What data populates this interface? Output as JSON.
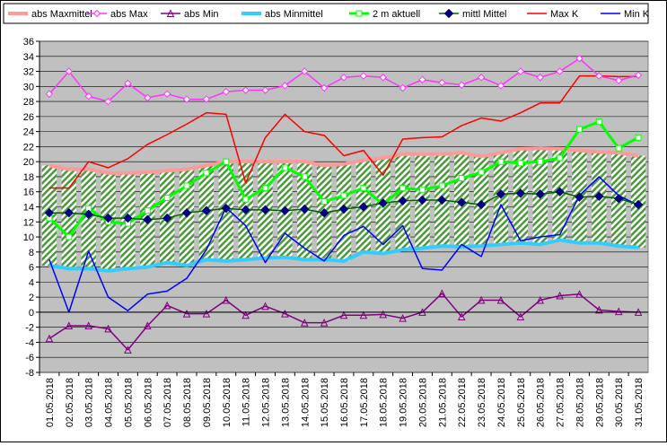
{
  "chart_data": {
    "type": "line",
    "title": "",
    "xlabel": "",
    "ylabel": "",
    "ylim": [
      -8,
      36
    ],
    "ytick_step": 2,
    "grid": true,
    "legend_position": "top",
    "plot_background": "#c0c0c0",
    "band_between": [
      "abs Minmittel",
      "abs Maxmittel"
    ],
    "band_hatch_color": "#4a9a3a",
    "categories": [
      "01.05.2018",
      "02.05.2018",
      "03.05.2018",
      "04.05.2018",
      "05.05.2018",
      "06.05.2018",
      "07.05.2018",
      "08.05.2018",
      "09.05.2018",
      "10.05.2018",
      "11.05.2018",
      "12.05.2018",
      "13.05.2018",
      "14.05.2018",
      "15.05.2018",
      "16.05.2018",
      "17.05.2018",
      "18.05.2018",
      "19.05.2018",
      "20.05.2018",
      "21.05.2018",
      "22.05.2018",
      "23.05.2018",
      "24.05.2018",
      "25.05.2018",
      "26.05.2018",
      "27.05.2018",
      "28.05.2018",
      "29.05.2018",
      "30.05.2018",
      "31.05.2018"
    ],
    "series": [
      {
        "name": "abs Maxmittel",
        "color": "#ff9999",
        "marker": "none",
        "width": 4,
        "values": [
          19.5,
          19.0,
          19.0,
          18.5,
          18.5,
          18.6,
          18.8,
          19.0,
          19.5,
          20.0,
          20.0,
          20.0,
          20.0,
          20.0,
          19.5,
          19.7,
          20.2,
          20.5,
          21.0,
          21.0,
          21.0,
          21.2,
          20.7,
          21.2,
          21.7,
          21.8,
          21.7,
          21.5,
          21.3,
          21.2,
          20.8
        ]
      },
      {
        "name": "abs Max",
        "color": "#ff33ff",
        "marker": "diamond-open",
        "values": [
          29.0,
          32.0,
          28.7,
          28.0,
          30.4,
          28.5,
          29.0,
          28.3,
          28.3,
          29.3,
          29.5,
          29.5,
          30.1,
          32.0,
          29.8,
          31.2,
          31.4,
          31.2,
          29.8,
          30.9,
          30.5,
          30.2,
          31.2,
          30.1,
          32.0,
          31.2,
          32.0,
          33.7,
          31.4,
          30.8,
          31.5
        ]
      },
      {
        "name": "abs Min",
        "color": "#800080",
        "marker": "triangle-open",
        "values": [
          -3.5,
          -1.8,
          -1.8,
          -2.2,
          -5.0,
          -1.8,
          0.9,
          -0.2,
          -0.2,
          1.6,
          -0.4,
          0.8,
          -0.2,
          -1.4,
          -1.4,
          -0.4,
          -0.4,
          -0.3,
          -0.8,
          0.0,
          2.5,
          -0.6,
          1.6,
          1.6,
          -0.6,
          1.6,
          2.2,
          2.4,
          0.3,
          0.1,
          0.0
        ]
      },
      {
        "name": "abs Minmittel",
        "color": "#33ccff",
        "marker": "none",
        "width": 4,
        "values": [
          6.2,
          5.8,
          5.8,
          5.5,
          5.8,
          6.0,
          6.6,
          6.2,
          7.0,
          6.8,
          7.0,
          7.2,
          7.3,
          7.0,
          7.0,
          6.8,
          8.0,
          7.8,
          8.3,
          8.5,
          8.8,
          8.7,
          8.8,
          9.0,
          9.2,
          9.0,
          9.6,
          9.2,
          9.2,
          8.8,
          8.6
        ]
      },
      {
        "name": "2 m aktuell",
        "color": "#00ff00",
        "marker": "square-open",
        "width": 3,
        "values": [
          12.5,
          10.0,
          13.8,
          12.0,
          11.8,
          13.5,
          15.2,
          16.8,
          18.5,
          20.0,
          15.0,
          16.5,
          19.2,
          18.0,
          14.7,
          15.5,
          16.5,
          14.3,
          16.5,
          16.3,
          16.8,
          17.8,
          18.6,
          20.0,
          19.8,
          20.0,
          20.5,
          24.3,
          25.3,
          21.8,
          23.2
        ]
      },
      {
        "name": "mittl Mittel",
        "color": "#006400",
        "marker": "diamond-navy",
        "values": [
          13.2,
          13.2,
          13.0,
          12.5,
          12.5,
          12.3,
          12.5,
          13.2,
          13.5,
          13.8,
          13.6,
          13.6,
          13.5,
          13.7,
          13.2,
          13.7,
          14.0,
          14.5,
          14.8,
          14.9,
          14.9,
          14.6,
          14.3,
          15.7,
          15.8,
          15.7,
          16.0,
          15.3,
          15.4,
          15.1,
          14.3
        ]
      },
      {
        "name": "Max K",
        "color": "#ff0000",
        "marker": "none",
        "values": [
          16.5,
          16.5,
          20.0,
          19.2,
          20.4,
          22.3,
          23.6,
          25.0,
          26.5,
          26.3,
          17.2,
          23.2,
          26.3,
          24.0,
          23.5,
          20.8,
          21.5,
          18.2,
          23.0,
          23.2,
          23.3,
          24.8,
          25.8,
          25.4,
          26.5,
          27.8,
          27.8,
          31.4,
          31.4,
          31.3,
          31.3
        ]
      },
      {
        "name": "Min K",
        "color": "#0000ff",
        "marker": "none",
        "values": [
          7.0,
          0.0,
          8.1,
          2.0,
          0.2,
          2.4,
          2.8,
          4.5,
          8.3,
          13.9,
          11.5,
          6.6,
          10.5,
          8.5,
          6.8,
          10.2,
          11.4,
          9.0,
          11.5,
          5.8,
          5.6,
          9.0,
          7.4,
          14.3,
          9.5,
          10.0,
          10.3,
          15.5,
          18.0,
          15.5,
          14.2
        ]
      }
    ]
  }
}
